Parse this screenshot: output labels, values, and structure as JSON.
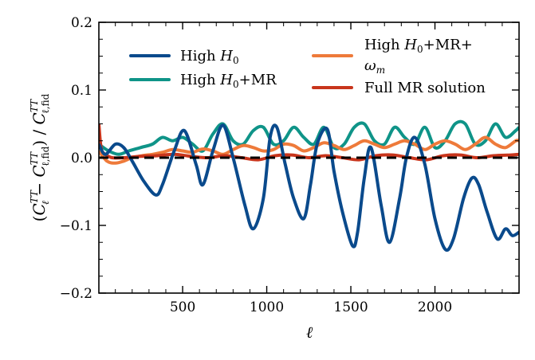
{
  "chart_data": {
    "type": "line",
    "xlabel": "ℓ",
    "ylabel": "(C_ℓ^TT − C_ℓ,fid^TT) / C_ℓ,fid^TT",
    "xlim": [
      2,
      2500
    ],
    "ylim": [
      -0.2,
      0.2
    ],
    "xticks": [
      500,
      1000,
      1500,
      2000
    ],
    "xtick_labels": [
      "500",
      "1000",
      "1500",
      "2000"
    ],
    "yticks": [
      -0.2,
      -0.1,
      0.0,
      0.1,
      0.2
    ],
    "ytick_labels": [
      "−0.2",
      "−0.1",
      "0.0",
      "0.1",
      "0.2"
    ],
    "reference_line": {
      "y": 0.0,
      "style": "dashed",
      "color": "#000000"
    },
    "legend": {
      "placement": "top",
      "columns": 2
    },
    "series": [
      {
        "name": "High H0",
        "color": "#0a4a8c",
        "x": [
          2,
          40,
          100,
          150,
          200,
          270,
          340,
          380,
          450,
          510,
          580,
          620,
          680,
          740,
          800,
          870,
          920,
          980,
          1020,
          1060,
          1110,
          1160,
          1220,
          1260,
          1300,
          1360,
          1400,
          1450,
          1510,
          1540,
          1580,
          1620,
          1680,
          1730,
          1790,
          1830,
          1880,
          1940,
          2000,
          2060,
          2110,
          2170,
          2220,
          2260,
          2310,
          2370,
          2420,
          2460,
          2500
        ],
        "y": [
          0.02,
          0.005,
          0.02,
          0.015,
          -0.005,
          -0.035,
          -0.055,
          -0.04,
          0.01,
          0.04,
          -0.01,
          -0.04,
          0.01,
          0.048,
          0.0,
          -0.07,
          -0.105,
          -0.06,
          0.03,
          0.045,
          -0.01,
          -0.06,
          -0.09,
          -0.04,
          0.02,
          0.042,
          -0.02,
          -0.08,
          -0.13,
          -0.11,
          -0.03,
          0.015,
          -0.07,
          -0.125,
          -0.06,
          0.0,
          0.03,
          -0.01,
          -0.09,
          -0.135,
          -0.12,
          -0.06,
          -0.03,
          -0.04,
          -0.08,
          -0.12,
          -0.105,
          -0.115,
          -0.11
        ]
      },
      {
        "name": "High H0+MR",
        "color": "#0f9488",
        "x": [
          2,
          60,
          120,
          180,
          250,
          320,
          380,
          440,
          500,
          560,
          620,
          680,
          740,
          800,
          860,
          920,
          980,
          1040,
          1100,
          1160,
          1220,
          1280,
          1340,
          1400,
          1460,
          1520,
          1580,
          1640,
          1700,
          1760,
          1820,
          1880,
          1940,
          2000,
          2060,
          2120,
          2180,
          2240,
          2300,
          2360,
          2420,
          2480,
          2500
        ],
        "y": [
          0.02,
          0.01,
          0.005,
          0.01,
          0.015,
          0.02,
          0.03,
          0.025,
          0.03,
          0.02,
          0.01,
          0.035,
          0.05,
          0.025,
          0.02,
          0.04,
          0.045,
          0.02,
          0.025,
          0.045,
          0.03,
          0.02,
          0.045,
          0.015,
          0.02,
          0.045,
          0.05,
          0.025,
          0.02,
          0.045,
          0.03,
          0.02,
          0.045,
          0.015,
          0.025,
          0.05,
          0.05,
          0.02,
          0.025,
          0.05,
          0.03,
          0.04,
          0.045
        ]
      },
      {
        "name": "High H0+MR+ ωm",
        "color": "#ee7a3a",
        "x": [
          2,
          50,
          100,
          150,
          200,
          260,
          320,
          380,
          440,
          500,
          560,
          620,
          680,
          740,
          800,
          860,
          920,
          980,
          1040,
          1100,
          1160,
          1220,
          1280,
          1340,
          1400,
          1460,
          1520,
          1580,
          1640,
          1700,
          1760,
          1820,
          1880,
          1940,
          2000,
          2060,
          2120,
          2180,
          2240,
          2300,
          2360,
          2420,
          2480,
          2500
        ],
        "y": [
          0.01,
          -0.005,
          -0.008,
          -0.005,
          0.0,
          0.003,
          0.005,
          0.008,
          0.012,
          0.01,
          0.008,
          0.013,
          0.01,
          0.005,
          0.012,
          0.018,
          0.015,
          0.01,
          0.012,
          0.02,
          0.018,
          0.01,
          0.015,
          0.022,
          0.018,
          0.012,
          0.018,
          0.025,
          0.02,
          0.015,
          0.02,
          0.025,
          0.02,
          0.012,
          0.02,
          0.025,
          0.02,
          0.012,
          0.02,
          0.03,
          0.02,
          0.015,
          0.025,
          0.025
        ]
      },
      {
        "name": "Full MR solution",
        "color": "#c8351c",
        "x": [
          2,
          10,
          20,
          40,
          80,
          150,
          250,
          350,
          450,
          550,
          650,
          750,
          850,
          950,
          1050,
          1150,
          1250,
          1350,
          1450,
          1550,
          1650,
          1750,
          1850,
          1950,
          2050,
          2150,
          2250,
          2350,
          2450,
          2500
        ],
        "y": [
          0.05,
          0.025,
          0.01,
          0.005,
          0.0,
          0.0,
          0.002,
          0.003,
          0.005,
          0.002,
          0.0,
          0.003,
          0.0,
          -0.003,
          0.003,
          0.004,
          0.0,
          0.003,
          0.0,
          -0.003,
          0.003,
          0.004,
          0.0,
          -0.003,
          0.003,
          0.004,
          0.0,
          0.003,
          0.004,
          0.005
        ]
      }
    ]
  }
}
